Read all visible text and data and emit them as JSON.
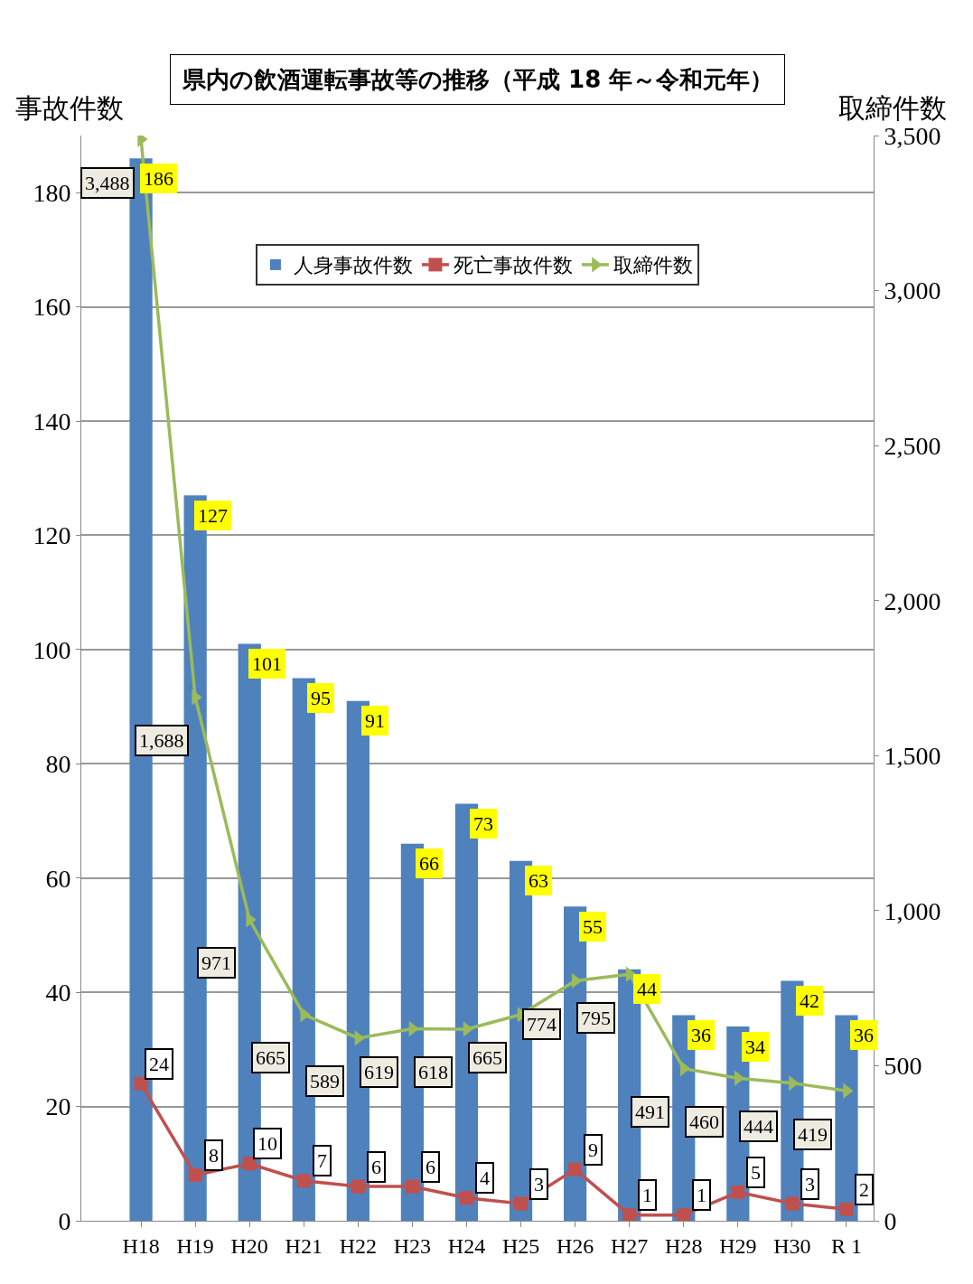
{
  "chart_data": {
    "type": "bar",
    "title": "県内の飲酒運転事故等の推移（平成 18 年～令和元年）",
    "ylabel": "事故件数",
    "y2label": "取締件数",
    "categories": [
      "H18",
      "H19",
      "H20",
      "H21",
      "H22",
      "H23",
      "H24",
      "H25",
      "H26",
      "H27",
      "H28",
      "H29",
      "H30",
      "R 1"
    ],
    "series": [
      {
        "name": "人身事故件数",
        "color": "#4f81bd",
        "values": [
          186,
          127,
          101,
          95,
          91,
          66,
          73,
          63,
          55,
          44,
          36,
          34,
          42,
          36
        ]
      },
      {
        "name": "死亡事故件数",
        "type": "line",
        "color": "#c0504d",
        "marker": "square",
        "values": [
          24,
          8,
          10,
          7,
          6,
          6,
          4,
          3,
          9,
          1,
          1,
          5,
          3,
          2
        ]
      },
      {
        "name": "取締件数",
        "type": "line",
        "axis": "y2",
        "color": "#9bbb59",
        "marker": "triangle",
        "values": [
          3488,
          1688,
          971,
          665,
          589,
          619,
          618,
          665,
          774,
          795,
          491,
          460,
          444,
          419
        ],
        "value_labels": [
          "3,488",
          "1,688",
          "971",
          "665",
          "589",
          "619",
          "618",
          "665",
          "774",
          "795",
          "491",
          "460",
          "444",
          "419"
        ]
      }
    ],
    "ylim": [
      0,
      190
    ],
    "yticks": [
      0,
      20,
      40,
      60,
      80,
      100,
      120,
      140,
      160,
      180
    ],
    "y2lim": [
      0,
      3500
    ],
    "y2ticks": [
      0,
      500,
      {
        "value": 1000,
        "label": "1,000"
      },
      {
        "value": 1500,
        "label": "1,500"
      },
      {
        "value": 2000,
        "label": "2,000"
      },
      {
        "value": 2500,
        "label": "2,500"
      },
      {
        "value": 3000,
        "label": "3,000"
      },
      {
        "value": 3500,
        "label": "3,500"
      }
    ],
    "grid": "y",
    "legend": "top",
    "data_labels": true
  }
}
